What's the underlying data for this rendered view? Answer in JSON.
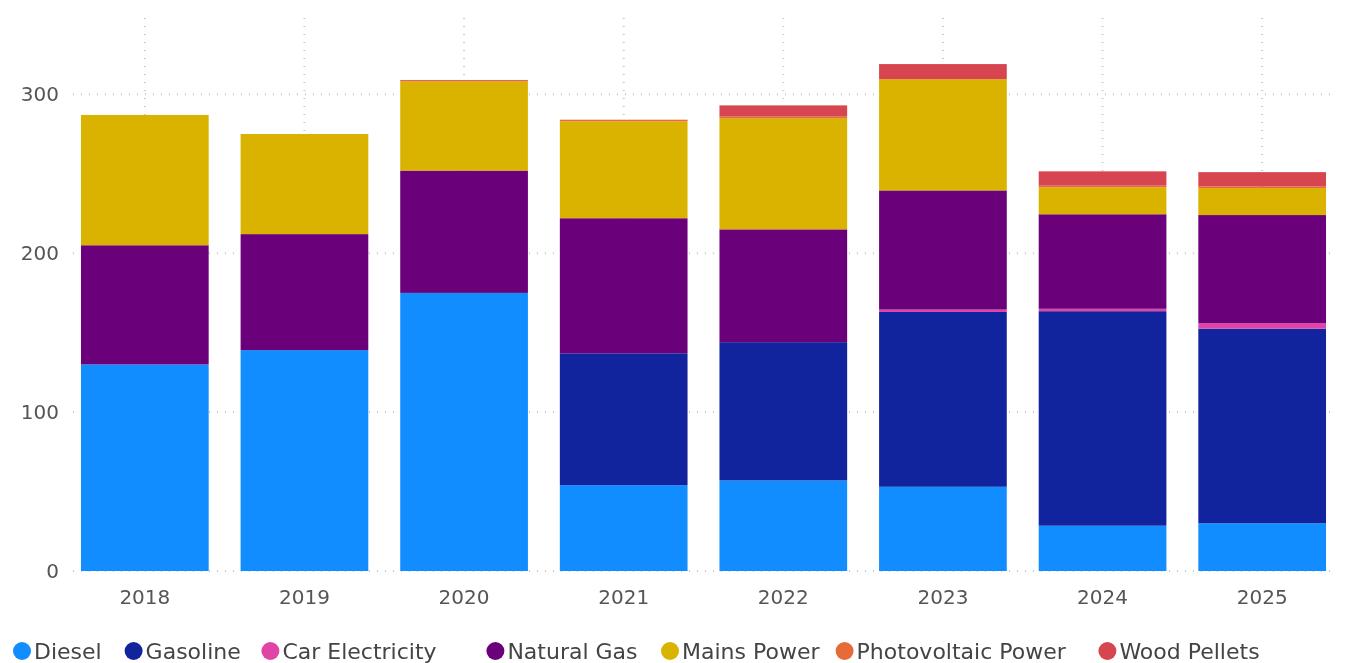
{
  "chart_data": {
    "type": "bar",
    "stacked": true,
    "categories": [
      "2018",
      "2019",
      "2020",
      "2021",
      "2022",
      "2023",
      "2024",
      "2025"
    ],
    "series": [
      {
        "name": "Diesel",
        "color": "#118dff",
        "values": [
          130,
          139,
          175,
          54,
          57,
          53,
          28.5,
          30
        ]
      },
      {
        "name": "Gasoline",
        "color": "#12239e",
        "values": [
          0,
          0,
          0,
          83,
          87,
          110,
          135,
          122.5
        ]
      },
      {
        "name": "Car Electricity",
        "color": "#e044a7",
        "values": [
          0,
          0,
          0,
          0,
          0,
          1.5,
          1.5,
          3.5
        ]
      },
      {
        "name": "Natural Gas",
        "color": "#6b007b",
        "values": [
          75,
          73,
          77,
          85,
          71,
          75,
          59.5,
          68
        ]
      },
      {
        "name": "Mains Power",
        "color": "#d9b300",
        "values": [
          82,
          63,
          56,
          61,
          70,
          70,
          17,
          17
        ]
      },
      {
        "name": "Photovoltaic Power",
        "color": "#e66c37",
        "values": [
          0,
          0,
          1,
          1,
          1,
          0,
          1,
          1
        ]
      },
      {
        "name": "Wood Pellets",
        "color": "#d64550",
        "values": [
          0,
          0,
          0,
          0,
          7,
          9.5,
          9,
          9
        ]
      }
    ],
    "ylim": [
      0,
      348
    ],
    "yticks": [
      0,
      100,
      200,
      300
    ],
    "grid": true,
    "legend": "bottom"
  }
}
